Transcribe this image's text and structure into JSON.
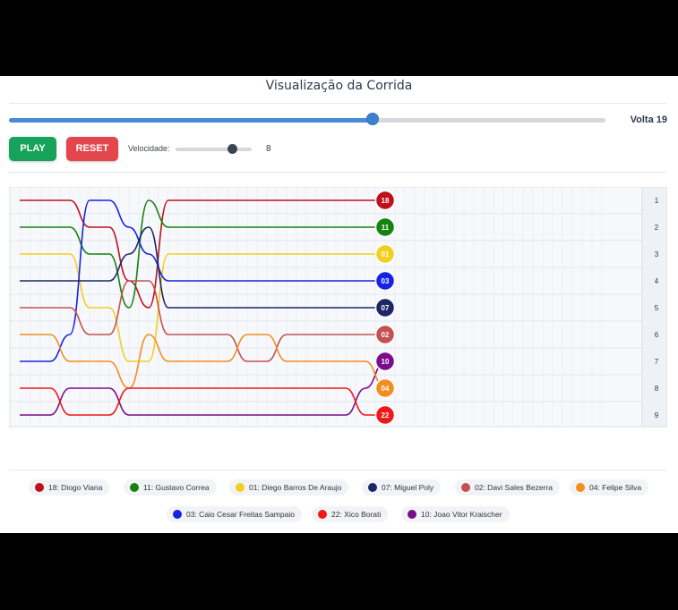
{
  "title": "Visualização da Corrida",
  "controls": {
    "play_label": "PLAY",
    "reset_label": "RESET",
    "speed_label": "Velocidade:",
    "speed_value": "8",
    "speed_fraction": 0.75,
    "lap_label": "Volta 19",
    "lap_fraction": 0.61
  },
  "colors": {
    "play": "#17a35a",
    "reset": "#e3474c",
    "accent": "#4a8bd6"
  },
  "chart_data": {
    "type": "line",
    "x_ticks": [
      1,
      2,
      3,
      4,
      5,
      6,
      7,
      8,
      9,
      10,
      11,
      12,
      13,
      14,
      15,
      16,
      17,
      18,
      19,
      20,
      21,
      22,
      23,
      24,
      25,
      26,
      27,
      28,
      29,
      30,
      31
    ],
    "positions": [
      1,
      2,
      3,
      4,
      5,
      6,
      7,
      8,
      9
    ],
    "current_lap": 19,
    "grid": true,
    "series": [
      {
        "code": "18",
        "name": "Diogo Viana",
        "color": "#c0101c",
        "positions": [
          1,
          1,
          1,
          2,
          2,
          4,
          5,
          1,
          1,
          1,
          1,
          1,
          1,
          1,
          1,
          1,
          1,
          1,
          1
        ]
      },
      {
        "code": "11",
        "name": "Gustavo Correa",
        "color": "#16820f",
        "positions": [
          2,
          2,
          2,
          3,
          3,
          5,
          1,
          2,
          2,
          2,
          2,
          2,
          2,
          2,
          2,
          2,
          2,
          2,
          2
        ]
      },
      {
        "code": "01",
        "name": "Diego Barros De Araujo",
        "color": "#f2cf1f",
        "positions": [
          3,
          3,
          3,
          5,
          5,
          7,
          7,
          3,
          3,
          3,
          3,
          3,
          3,
          3,
          3,
          3,
          3,
          3,
          3
        ]
      },
      {
        "code": "03",
        "name": "Caio Cesar Freitas Sampaio",
        "color": "#1722e2",
        "positions": [
          7,
          7,
          6,
          1,
          1,
          2,
          3,
          4,
          4,
          4,
          4,
          4,
          4,
          4,
          4,
          4,
          4,
          4,
          4
        ]
      },
      {
        "code": "07",
        "name": "Miguel Poly",
        "color": "#1c2764",
        "positions": [
          4,
          4,
          4,
          4,
          4,
          3,
          2,
          5,
          5,
          5,
          5,
          5,
          5,
          5,
          5,
          5,
          5,
          5,
          5
        ]
      },
      {
        "code": "02",
        "name": "Davi Sales Bezerra",
        "color": "#c45050",
        "positions": [
          5,
          5,
          5,
          6,
          6,
          4,
          4,
          6,
          6,
          6,
          6,
          7,
          7,
          6,
          6,
          6,
          6,
          6,
          6
        ]
      },
      {
        "code": "10",
        "name": "Joao Vitor Kraischer",
        "color": "#7a0d8a",
        "positions": [
          9,
          9,
          8,
          8,
          8,
          9,
          9,
          9,
          9,
          9,
          9,
          9,
          9,
          9,
          9,
          9,
          9,
          8,
          7
        ]
      },
      {
        "code": "04",
        "name": "Felipe Silva",
        "color": "#f28e1e",
        "positions": [
          6,
          6,
          7,
          7,
          7,
          8,
          6,
          7,
          7,
          7,
          7,
          6,
          6,
          7,
          7,
          7,
          7,
          7,
          8
        ]
      },
      {
        "code": "22",
        "name": "Xico Borati",
        "color": "#f01818",
        "positions": [
          8,
          8,
          9,
          9,
          9,
          8,
          8,
          8,
          8,
          8,
          8,
          8,
          8,
          8,
          8,
          8,
          8,
          9,
          9
        ]
      }
    ]
  },
  "legend": [
    {
      "label": "18: Diogo Viana",
      "color": "#c0101c"
    },
    {
      "label": "11: Gustavo Correa",
      "color": "#16820f"
    },
    {
      "label": "01: Diego Barros De Araujo",
      "color": "#f2cf1f"
    },
    {
      "label": "07: Miguel Poly",
      "color": "#1c2764"
    },
    {
      "label": "02: Davi Sales Bezerra",
      "color": "#c45050"
    },
    {
      "label": "04: Felipe Silva",
      "color": "#f28e1e"
    },
    {
      "label": "03: Caio Cesar Freitas Sampaio",
      "color": "#1722e2"
    },
    {
      "label": "22: Xico Borati",
      "color": "#f01818"
    },
    {
      "label": "10: Joao Vitor Kraischer",
      "color": "#7a0d8a"
    }
  ]
}
